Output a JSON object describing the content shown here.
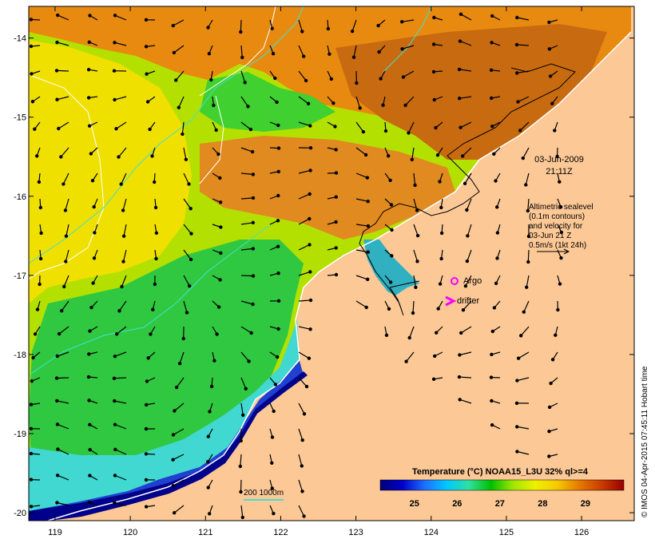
{
  "map": {
    "lon_range": [
      118.65,
      126.7
    ],
    "lat_range": [
      -20.1,
      -13.6
    ],
    "lon_ticks": [
      119,
      120,
      121,
      122,
      123,
      124,
      125,
      126
    ],
    "lat_ticks": [
      -14,
      -15,
      -16,
      -17,
      -18,
      -19,
      -20
    ],
    "lon_tick_labels": [
      "119",
      "120",
      "121",
      "122",
      "123",
      "124",
      "125",
      "126"
    ],
    "lat_tick_labels": [
      "-14",
      "-15",
      "-16",
      "-17",
      "-18",
      "-19",
      "-20"
    ],
    "land_color": "#fcc896",
    "coast_color": "#ffffff"
  },
  "annotations": {
    "date": "03-Jun-2009",
    "time": "21:11Z",
    "sealevel_lines": [
      "Altimetric sealevel",
      "(0.1m contours)",
      "and velocity for",
      "03-Jun 21 Z",
      "0.5m/s (1kt 24h)"
    ],
    "argo_label": "Argo",
    "drifter_label": "drifter",
    "marker_color": "#ff00ff"
  },
  "isobath_legend": {
    "label": "200  1000m",
    "color": "#40e0d0"
  },
  "colorbar": {
    "title": "Temperature (°C) NOAA15_L3U 32% ql>=4",
    "min": 24.2,
    "max": 29.9,
    "tick_values": [
      25,
      26,
      27,
      28,
      29
    ],
    "tick_labels": [
      "25",
      "26",
      "27",
      "28",
      "29"
    ],
    "stops": [
      "#00007a",
      "#0000c8",
      "#1e6eff",
      "#00c8ff",
      "#30e0a0",
      "#00c000",
      "#a0e600",
      "#f0f000",
      "#f5c800",
      "#e67800",
      "#c83c00",
      "#960000"
    ]
  },
  "credit": "© IMOS 04-Apr-2015 07:45:11 Hobart time"
}
